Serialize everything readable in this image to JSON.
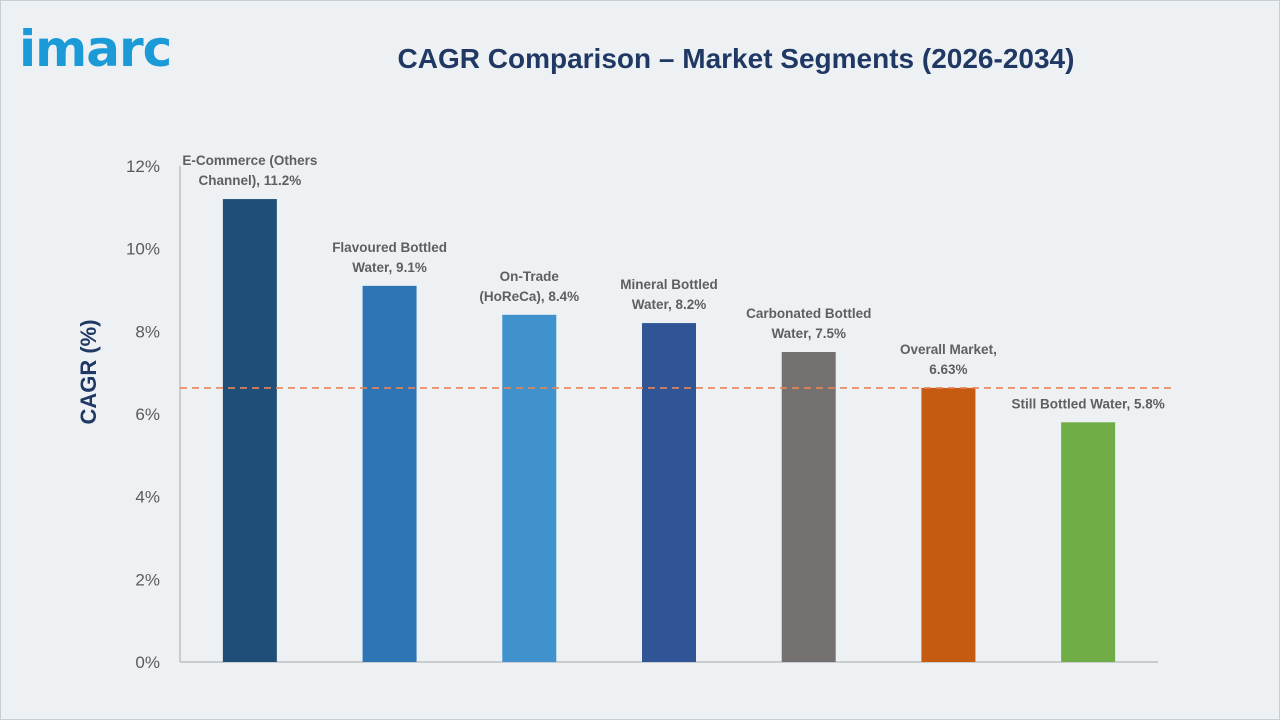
{
  "brand": {
    "logo_text": "imarc"
  },
  "colors": {
    "background": "#eef1f4",
    "title": "#203864",
    "logo": "#1a9ad6",
    "reference_line": "#e8845a"
  },
  "chart_data": {
    "type": "bar",
    "title": "CAGR Comparison – Market Segments (2026-2034)",
    "xlabel": "",
    "ylabel": "CAGR (%)",
    "ylim": [
      0,
      12
    ],
    "yticks": [
      "0%",
      "2%",
      "4%",
      "6%",
      "8%",
      "10%",
      "12%"
    ],
    "ytick_values": [
      0,
      2,
      4,
      6,
      8,
      10,
      12
    ],
    "grid": false,
    "categories": [
      "E-Commerce (Others Channel)",
      "Flavoured Bottled Water",
      "On-Trade (HoReCa)",
      "Mineral Bottled Water",
      "Carbonated Bottled Water",
      "Overall Market",
      "Still Bottled Water"
    ],
    "values": [
      11.2,
      9.1,
      8.4,
      8.2,
      7.5,
      6.63,
      5.8
    ],
    "bar_colors": [
      "#1f4e79",
      "#2e75b6",
      "#3f92cc",
      "#2f5597",
      "#767171",
      "#c55a11",
      "#70ad47"
    ],
    "data_labels": [
      [
        "E-Commerce (Others",
        "Channel), 11.2%"
      ],
      [
        "Flavoured Bottled",
        "Water, 9.1%"
      ],
      [
        "On-Trade",
        "(HoReCa), 8.4%"
      ],
      [
        "Mineral Bottled",
        "Water, 8.2%"
      ],
      [
        "Carbonated Bottled",
        "Water, 7.5%"
      ],
      [
        "Overall Market,",
        "6.63%"
      ],
      [
        "Still Bottled Water, 5.8%"
      ]
    ],
    "reference_line": {
      "value": 6.63,
      "style": "dashed"
    }
  }
}
